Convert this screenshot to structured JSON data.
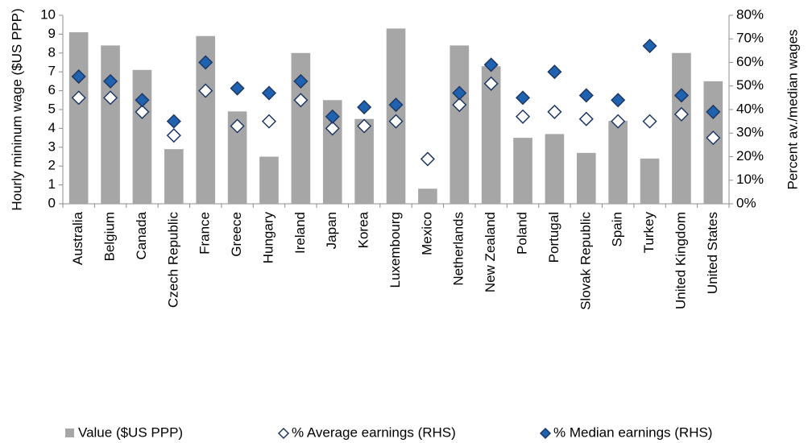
{
  "chart_data": {
    "type": "bar_markers",
    "ylabel": "Hourly mininum wage ($US PPP)",
    "y2label": "Percent av./median wages",
    "categories": [
      "Australia",
      "Belgium",
      "Canada",
      "Czech Republic",
      "France",
      "Greece",
      "Hungary",
      "Ireland",
      "Japan",
      "Korea",
      "Luxembourg",
      "Mexico",
      "Netherlands",
      "New Zealand",
      "Poland",
      "Portugal",
      "Slovak Republic",
      "Spain",
      "Turkey",
      "United Kingdom",
      "United States"
    ],
    "series": [
      {
        "name": "Value ($US PPP)",
        "color": "#a6a6a6",
        "kind": "bar",
        "values": [
          9.1,
          8.4,
          7.1,
          2.9,
          8.9,
          4.9,
          2.5,
          8.0,
          5.5,
          4.5,
          9.3,
          0.8,
          8.4,
          7.3,
          3.5,
          3.7,
          2.7,
          4.4,
          2.4,
          8.0,
          6.5
        ]
      },
      {
        "name": "% Average earnings (RHS)",
        "color": "#ffffff",
        "kind": "marker",
        "axis": "y2",
        "values": [
          45,
          45,
          39,
          29,
          48,
          33,
          35,
          44,
          32,
          33,
          35,
          19,
          42,
          51,
          37,
          39,
          36,
          35,
          35,
          38,
          28
        ]
      },
      {
        "name": "% Median earnings (RHS)",
        "color": "#1f62b0",
        "kind": "marker",
        "axis": "y2",
        "values": [
          54,
          52,
          44,
          35,
          60,
          49,
          47,
          52,
          37,
          41,
          42,
          null,
          47,
          59,
          45,
          56,
          46,
          44,
          67,
          46,
          39
        ]
      }
    ],
    "ylim": [
      0,
      10
    ],
    "yticks": [
      0,
      1,
      2,
      3,
      4,
      5,
      6,
      7,
      8,
      9,
      10
    ],
    "y2lim": [
      0,
      80
    ],
    "y2ticks": [
      {
        "value": 0,
        "label": "0%"
      },
      {
        "value": 10,
        "label": "10%"
      },
      {
        "value": 20,
        "label": "20%"
      },
      {
        "value": 30,
        "label": "30%"
      },
      {
        "value": 40,
        "label": "40%"
      },
      {
        "value": 50,
        "label": "50%"
      },
      {
        "value": 60,
        "label": "60%"
      },
      {
        "value": 70,
        "label": "70%"
      },
      {
        "value": 80,
        "label": "80%"
      }
    ],
    "legend": "bottom"
  }
}
